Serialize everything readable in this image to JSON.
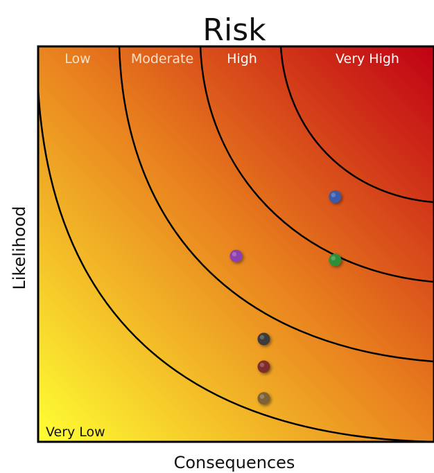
{
  "chart_data": {
    "type": "scatter",
    "title": "Risk",
    "xlabel": "Consequences",
    "ylabel": "Likelihood",
    "xlim": [
      0,
      1
    ],
    "ylim": [
      0,
      1
    ],
    "grid": false,
    "zones": [
      {
        "label": "Very Low"
      },
      {
        "label": "Low"
      },
      {
        "label": "Moderate"
      },
      {
        "label": "High"
      },
      {
        "label": "Very High"
      }
    ],
    "points": [
      {
        "x": 0.75,
        "y": 0.62,
        "color": "#3b5aa8"
      },
      {
        "x": 0.5,
        "y": 0.47,
        "color": "#8d3fae"
      },
      {
        "x": 0.75,
        "y": 0.46,
        "color": "#2f8f3b"
      },
      {
        "x": 0.57,
        "y": 0.26,
        "color": "#3a3a3a"
      },
      {
        "x": 0.57,
        "y": 0.19,
        "color": "#7e2f2a"
      },
      {
        "x": 0.57,
        "y": 0.11,
        "color": "#7b6235"
      }
    ],
    "colors": {
      "low_risk": "#ffff33",
      "mid_risk": "#e87f1e",
      "high_risk": "#c00014"
    }
  }
}
